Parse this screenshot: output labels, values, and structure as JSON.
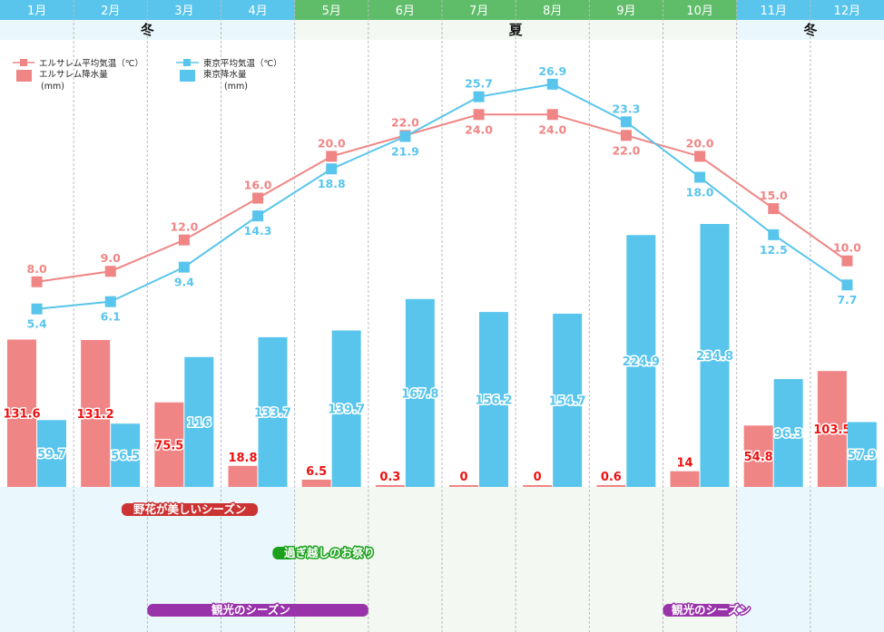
{
  "chart_data": {
    "type": "bar",
    "categories": [
      "1月",
      "2月",
      "3月",
      "4月",
      "5月",
      "6月",
      "7月",
      "8月",
      "9月",
      "10月",
      "11月",
      "12月"
    ],
    "month_season": [
      "winter",
      "winter",
      "winter",
      "winter",
      "summer",
      "summer",
      "summer",
      "summer",
      "summer",
      "summer",
      "winter",
      "winter"
    ],
    "seasons": [
      {
        "label": "冬",
        "from": 0,
        "to": 3
      },
      {
        "label": "夏",
        "from": 4,
        "to": 9
      },
      {
        "label": "冬",
        "from": 10,
        "to": 11
      }
    ],
    "series": [
      {
        "name": "エルサレム降水量(mm)",
        "kind": "bar",
        "color": "#f08585",
        "label_color": "#ee1111",
        "values": [
          131.6,
          131.2,
          75.5,
          18.8,
          6.5,
          0.3,
          0,
          0,
          0.6,
          14,
          54.8,
          103.5
        ],
        "labels": [
          "131.6",
          "131.2",
          "75.5",
          "18.8",
          "6.5",
          "0.3",
          "0",
          "0",
          "0.6",
          "14",
          "54.8",
          "103.5"
        ]
      },
      {
        "name": "東京降水量(mm)",
        "kind": "bar",
        "color": "#59c5ec",
        "label_color": "#59c5ec",
        "values": [
          59.7,
          56.5,
          116,
          133.7,
          139.7,
          167.8,
          156.2,
          154.7,
          224.9,
          234.8,
          96.3,
          57.9
        ],
        "labels": [
          "59.7",
          "56.5",
          "116",
          "133.7",
          "139.7",
          "167.8",
          "156.2",
          "154.7",
          "224.9",
          "234.8",
          "96.3",
          "57.9"
        ]
      },
      {
        "name": "エルサレム平均気温(℃)",
        "kind": "line",
        "color": "#f08585",
        "values": [
          8.0,
          9.0,
          12.0,
          16.0,
          20.0,
          22.0,
          24.0,
          24.0,
          22.0,
          20.0,
          15.0,
          10.0
        ],
        "labels": [
          "8.0",
          "9.0",
          "12.0",
          "16.0",
          "20.0",
          "22.0",
          "24.0",
          "24.0",
          "22.0",
          "20.0",
          "15.0",
          "10.0"
        ]
      },
      {
        "name": "東京平均気温(℃)",
        "kind": "line",
        "color": "#59c5ec",
        "values": [
          5.4,
          6.1,
          9.4,
          14.3,
          18.8,
          21.9,
          25.7,
          26.9,
          23.3,
          18.0,
          12.5,
          7.7
        ],
        "labels": [
          "5.4",
          "6.1",
          "9.4",
          "14.3",
          "18.8",
          "21.9",
          "25.7",
          "26.9",
          "23.3",
          "18.0",
          "12.5",
          "7.7"
        ]
      }
    ],
    "legend": {
      "jer_temp": "エルサレム平均気温（℃）",
      "jer_rain_1": "エルサレム降水量",
      "jer_rain_2": "(mm)",
      "tok_temp": "東京平均気温（℃）",
      "tok_rain_1": "東京降水量",
      "tok_rain_2": "(mm)",
      "placement": "top-left"
    },
    "events": [
      {
        "label": "野花が美しいシーズン",
        "from": 1.65,
        "to": 3.5,
        "color": "#cc3333",
        "row": 0
      },
      {
        "label": "過ぎ越しのお祭り",
        "from": 3.7,
        "to": 4.0,
        "color": "#1aa01a",
        "row": 1
      },
      {
        "label": "観光のシーズン",
        "from": 2.0,
        "to": 5.0,
        "color": "#9933aa",
        "row": 2
      },
      {
        "label": "観光のシーズン",
        "from": 9.0,
        "to": 9.95,
        "color": "#9933aa",
        "row": 2
      }
    ],
    "colors": {
      "winter_header": "#59c5ec",
      "summer_header": "#5fbd6a",
      "winter_band": "#eaf8fd",
      "summer_band": "#f3f9f2"
    },
    "grid": true
  }
}
